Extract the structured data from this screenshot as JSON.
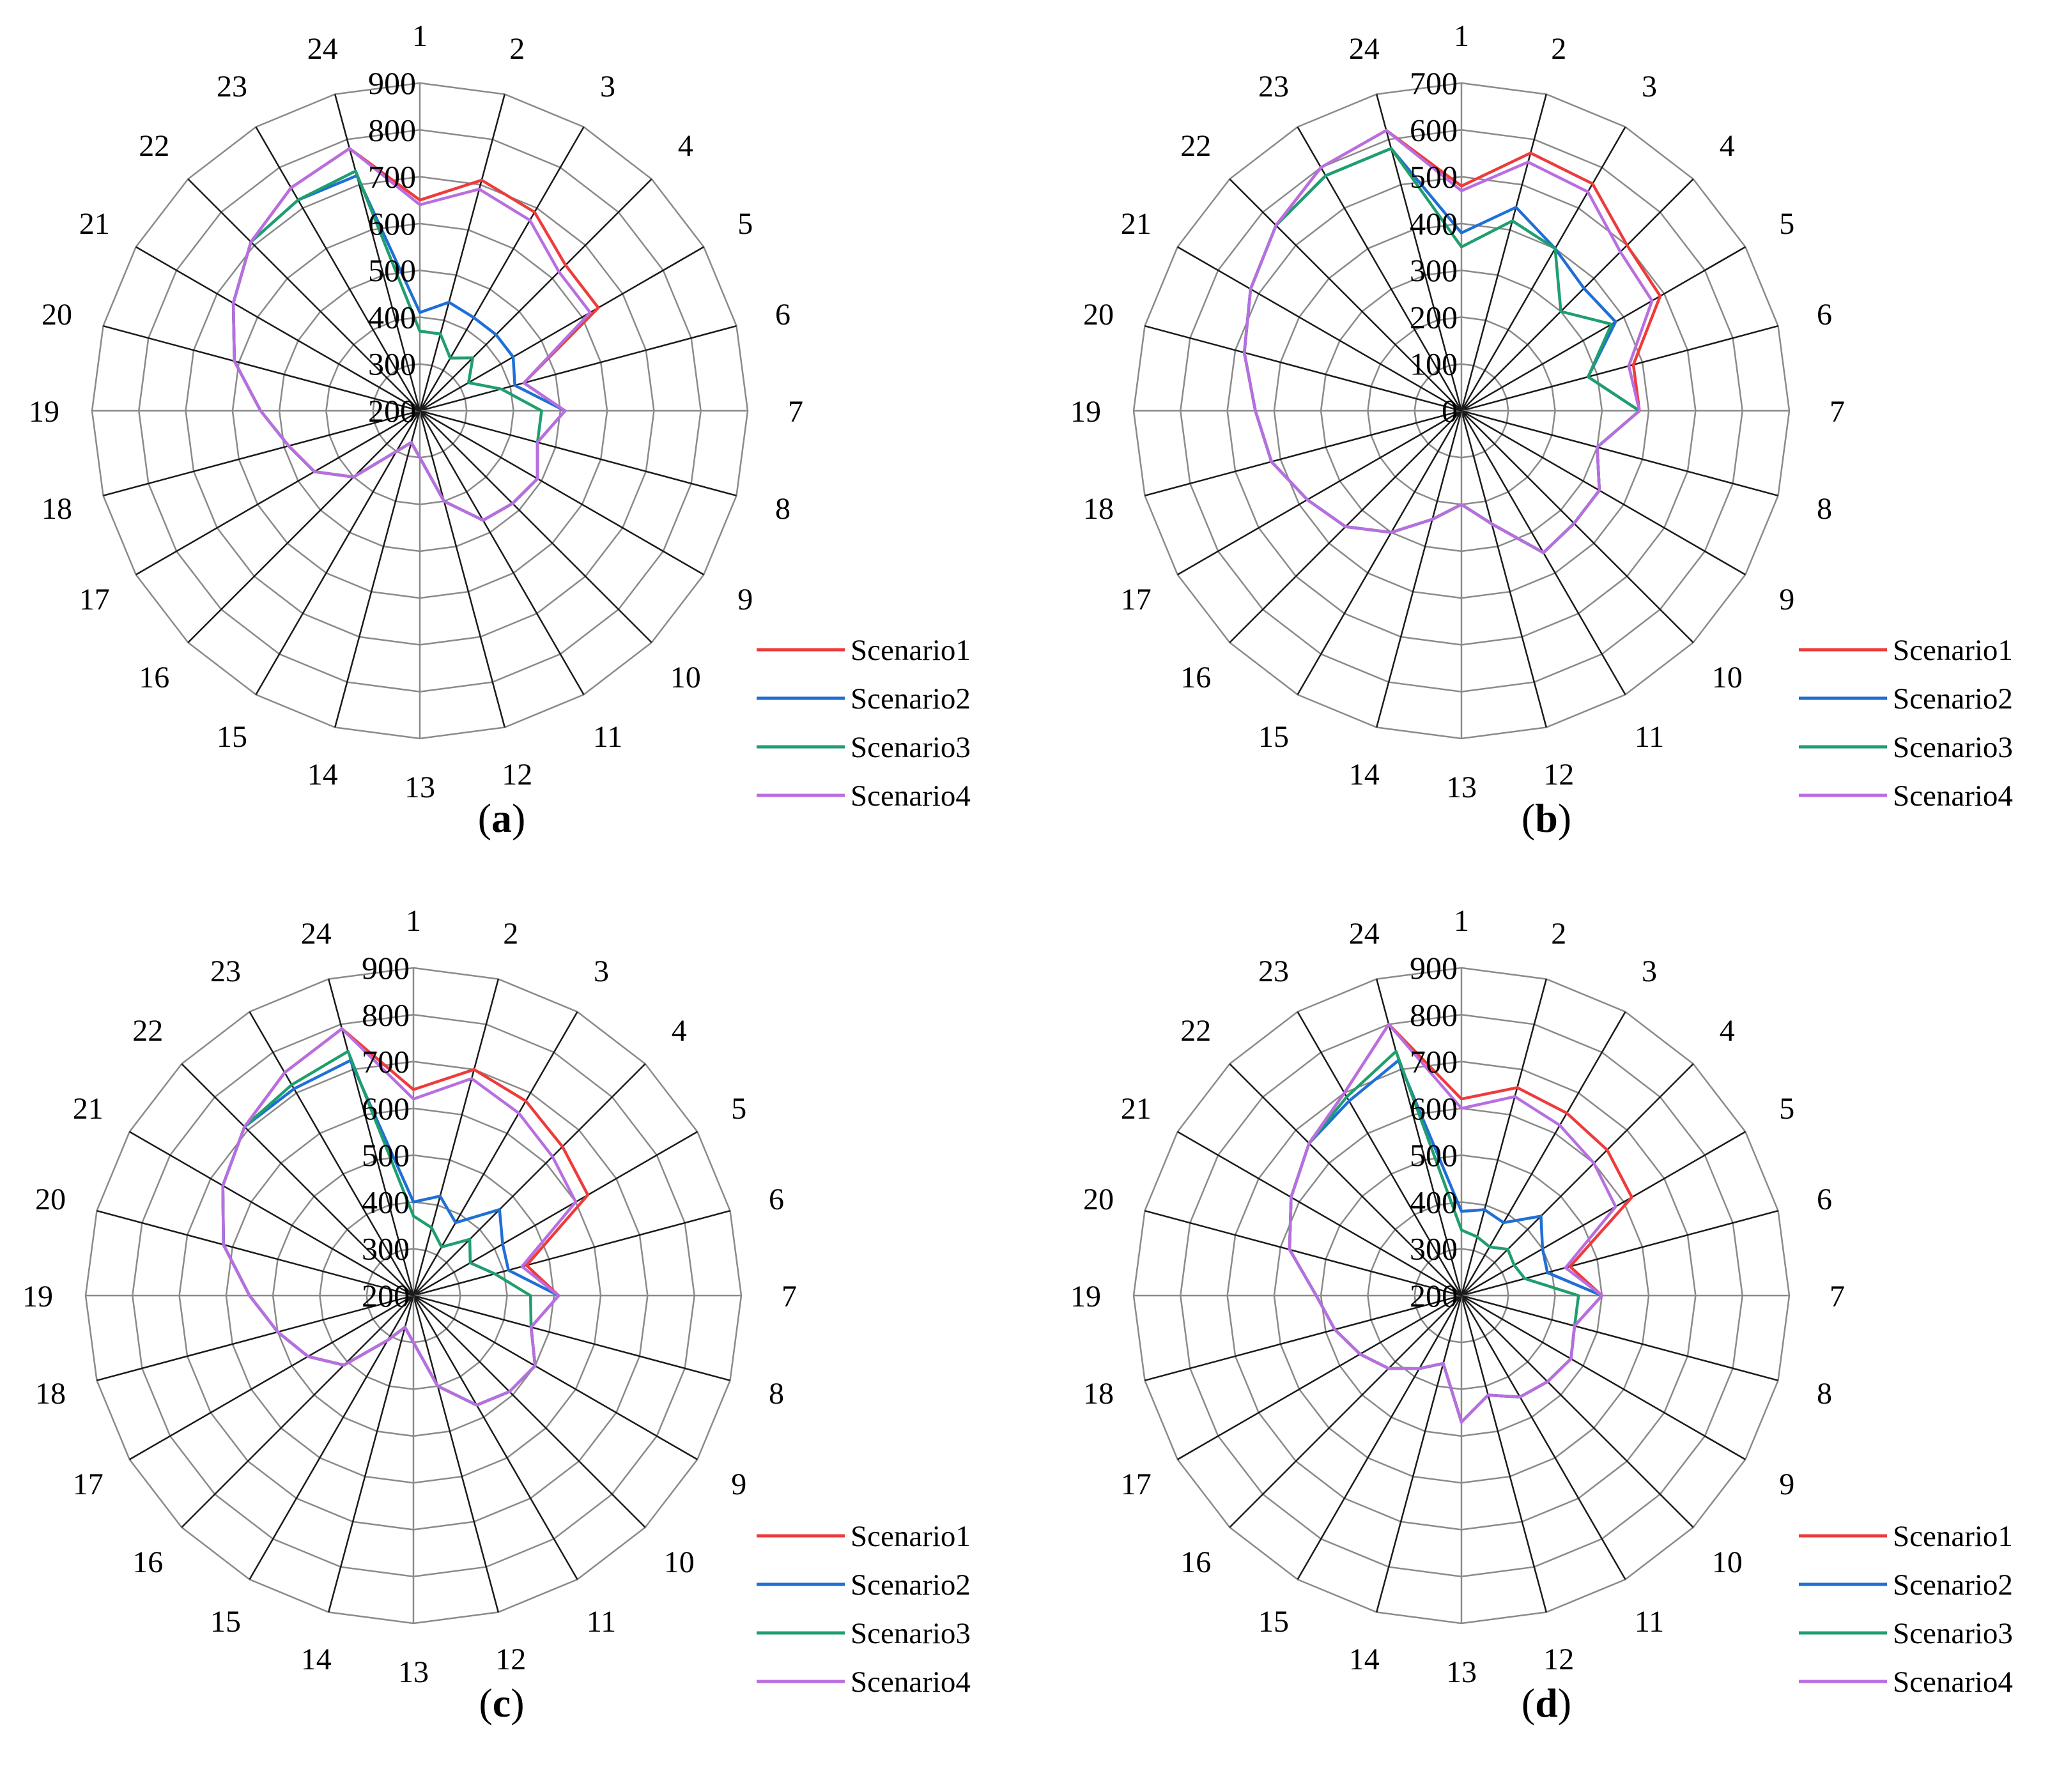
{
  "legend": [
    "Scenario1",
    "Scenario2",
    "Scenario3",
    "Scenario4"
  ],
  "colors": [
    "#ee3b3b",
    "#1f6fd6",
    "#1f9e6e",
    "#b86ee0"
  ],
  "chart_data": [
    {
      "type": "radar",
      "caption": "a",
      "categories": [
        "1",
        "2",
        "3",
        "4",
        "5",
        "6",
        "7",
        "8",
        "9",
        "10",
        "11",
        "12",
        "13",
        "14",
        "15",
        "16",
        "17",
        "18",
        "19",
        "20",
        "21",
        "22",
        "23",
        "24"
      ],
      "r_range": [
        200,
        900
      ],
      "ticks": [
        "200",
        "300",
        "400",
        "500",
        "600",
        "700",
        "800",
        "900"
      ],
      "series": [
        {
          "name": "Scenario1",
          "values": [
            650,
            710,
            690,
            640,
            640,
            430,
            510,
            460,
            490,
            480,
            470,
            400,
            300,
            270,
            300,
            400,
            460,
            490,
            540,
            610,
            660,
            710,
            750,
            780
          ]
        },
        {
          "name": "Scenario2",
          "values": [
            410,
            440,
            430,
            430,
            430,
            410,
            510,
            460,
            490,
            480,
            470,
            400,
            300,
            270,
            300,
            400,
            460,
            490,
            540,
            610,
            660,
            710,
            720,
            720
          ]
        },
        {
          "name": "Scenario3",
          "values": [
            370,
            370,
            330,
            360,
            320,
            380,
            460,
            460,
            490,
            480,
            470,
            400,
            300,
            270,
            300,
            400,
            460,
            490,
            540,
            610,
            660,
            710,
            720,
            730
          ]
        },
        {
          "name": "Scenario4",
          "values": [
            640,
            690,
            670,
            620,
            620,
            430,
            510,
            460,
            490,
            480,
            470,
            400,
            300,
            270,
            300,
            400,
            460,
            490,
            540,
            610,
            660,
            710,
            750,
            780
          ]
        }
      ]
    },
    {
      "type": "radar",
      "caption": "b",
      "categories": [
        "1",
        "2",
        "3",
        "4",
        "5",
        "6",
        "7",
        "8",
        "9",
        "10",
        "11",
        "12",
        "13",
        "14",
        "15",
        "16",
        "17",
        "18",
        "19",
        "20",
        "21",
        "22",
        "23",
        "24"
      ],
      "r_range": [
        0,
        700
      ],
      "ticks": [
        "0",
        "100",
        "200",
        "300",
        "400",
        "500",
        "600",
        "700"
      ],
      "series": [
        {
          "name": "Scenario1",
          "values": [
            480,
            570,
            560,
            500,
            490,
            380,
            380,
            300,
            340,
            340,
            350,
            250,
            200,
            240,
            300,
            350,
            380,
            420,
            440,
            480,
            520,
            560,
            600,
            620
          ]
        },
        {
          "name": "Scenario2",
          "values": [
            380,
            450,
            400,
            370,
            380,
            280,
            380,
            300,
            340,
            340,
            350,
            250,
            200,
            240,
            300,
            350,
            380,
            420,
            440,
            480,
            520,
            560,
            580,
            580
          ]
        },
        {
          "name": "Scenario3",
          "values": [
            350,
            420,
            400,
            300,
            370,
            280,
            380,
            300,
            340,
            340,
            350,
            250,
            200,
            240,
            300,
            350,
            380,
            420,
            440,
            480,
            520,
            560,
            580,
            580
          ]
        },
        {
          "name": "Scenario4",
          "values": [
            470,
            550,
            540,
            480,
            470,
            370,
            380,
            300,
            340,
            340,
            350,
            250,
            200,
            240,
            300,
            350,
            380,
            420,
            440,
            480,
            520,
            560,
            600,
            620
          ]
        }
      ]
    },
    {
      "type": "radar",
      "caption": "c",
      "categories": [
        "1",
        "2",
        "3",
        "4",
        "5",
        "6",
        "7",
        "8",
        "9",
        "10",
        "11",
        "12",
        "13",
        "14",
        "15",
        "16",
        "17",
        "18",
        "19",
        "20",
        "21",
        "22",
        "23",
        "24"
      ],
      "r_range": [
        200,
        900
      ],
      "ticks": [
        "200",
        "300",
        "400",
        "500",
        "600",
        "700",
        "800",
        "900"
      ],
      "series": [
        {
          "name": "Scenario1",
          "values": [
            640,
            700,
            680,
            650,
            630,
            450,
            510,
            460,
            500,
            490,
            470,
            400,
            300,
            270,
            310,
            410,
            460,
            500,
            550,
            620,
            670,
            710,
            750,
            790
          ]
        },
        {
          "name": "Scenario2",
          "values": [
            400,
            420,
            380,
            460,
            420,
            410,
            510,
            460,
            500,
            490,
            470,
            400,
            300,
            270,
            310,
            410,
            460,
            500,
            550,
            620,
            670,
            710,
            710,
            720
          ]
        },
        {
          "name": "Scenario3",
          "values": [
            370,
            350,
            320,
            370,
            340,
            380,
            450,
            460,
            500,
            490,
            470,
            400,
            300,
            270,
            310,
            410,
            460,
            500,
            550,
            620,
            670,
            710,
            720,
            740
          ]
        },
        {
          "name": "Scenario4",
          "values": [
            620,
            680,
            650,
            620,
            600,
            440,
            510,
            460,
            500,
            490,
            470,
            400,
            300,
            270,
            310,
            410,
            460,
            500,
            550,
            620,
            670,
            710,
            750,
            790
          ]
        }
      ]
    },
    {
      "type": "radar",
      "caption": "d",
      "categories": [
        "1",
        "2",
        "3",
        "4",
        "5",
        "6",
        "7",
        "8",
        "9",
        "10",
        "11",
        "12",
        "13",
        "14",
        "15",
        "16",
        "17",
        "18",
        "19",
        "20",
        "21",
        "22",
        "23",
        "24"
      ],
      "r_range": [
        200,
        900
      ],
      "ticks": [
        "200",
        "300",
        "400",
        "500",
        "600",
        "700",
        "800",
        "900"
      ],
      "series": [
        {
          "name": "Scenario1",
          "values": [
            620,
            660,
            650,
            640,
            620,
            440,
            500,
            450,
            470,
            460,
            450,
            420,
            470,
            350,
            380,
            420,
            450,
            480,
            510,
            580,
            620,
            660,
            700,
            800
          ]
        },
        {
          "name": "Scenario2",
          "values": [
            380,
            390,
            380,
            440,
            400,
            390,
            500,
            450,
            470,
            460,
            450,
            420,
            470,
            350,
            380,
            420,
            450,
            480,
            510,
            580,
            620,
            660,
            680,
            720
          ]
        },
        {
          "name": "Scenario3",
          "values": [
            340,
            330,
            320,
            340,
            330,
            340,
            450,
            450,
            470,
            460,
            450,
            420,
            470,
            350,
            380,
            420,
            450,
            480,
            510,
            580,
            620,
            660,
            690,
            740
          ]
        },
        {
          "name": "Scenario4",
          "values": [
            600,
            640,
            620,
            600,
            580,
            430,
            500,
            450,
            470,
            460,
            450,
            420,
            470,
            350,
            380,
            420,
            450,
            480,
            510,
            580,
            620,
            660,
            700,
            800
          ]
        }
      ]
    }
  ]
}
